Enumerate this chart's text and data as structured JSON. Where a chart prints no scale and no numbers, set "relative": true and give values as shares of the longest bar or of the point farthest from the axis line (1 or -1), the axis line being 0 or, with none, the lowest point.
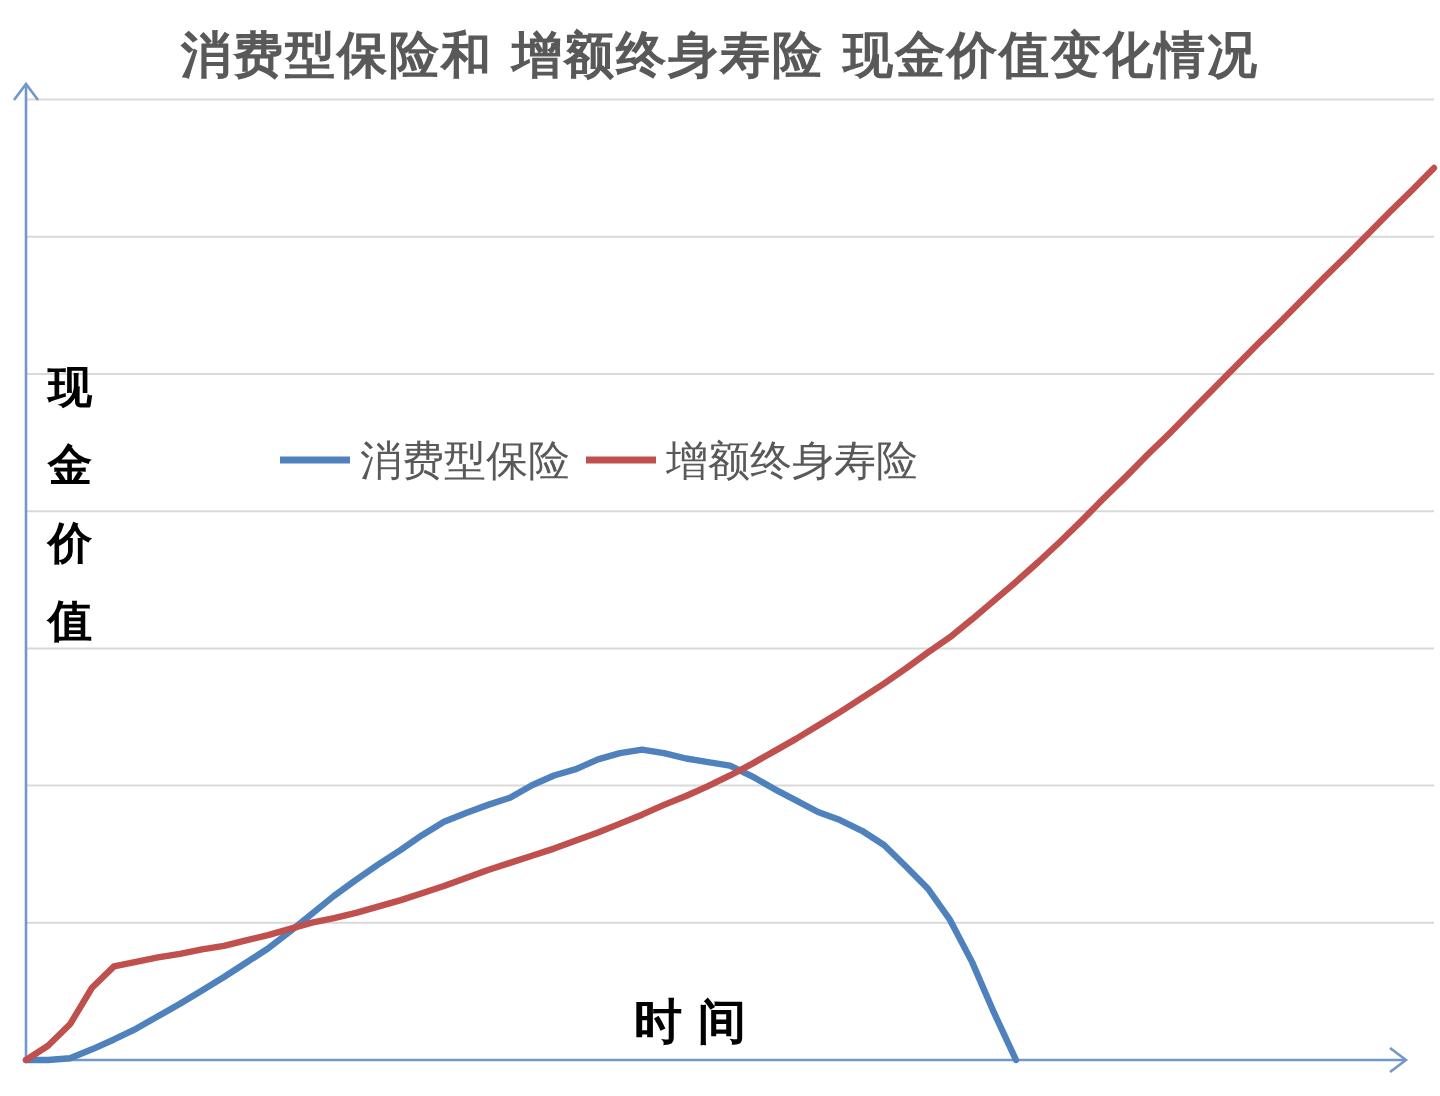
{
  "chart_data": {
    "type": "line",
    "title": "消费型保险和 增额终身寿险 现金价值变化情况",
    "xlabel": "时 间",
    "ylabel": "现金价值",
    "relative": true,
    "grid": "y",
    "legend": "top left",
    "categories": [
      null,
      null,
      null,
      null,
      null,
      null,
      null,
      null,
      null,
      null,
      null,
      null,
      null,
      null,
      null,
      null,
      null,
      null,
      null,
      null,
      null,
      null,
      null,
      null,
      null,
      null,
      null,
      null,
      null,
      null,
      null,
      null,
      null,
      null,
      null,
      null,
      null,
      null,
      null,
      null,
      null,
      null,
      null,
      null,
      null,
      null,
      null,
      null,
      null,
      null,
      null,
      null,
      null,
      null,
      null,
      null,
      null,
      null,
      null,
      null,
      null,
      null,
      null,
      null,
      null
    ],
    "series": [
      {
        "name": "消费型保险",
        "color": "#4f81bd",
        "values": [
          0,
          0,
          0.002,
          0.012,
          0.023,
          0.035,
          0.049,
          0.063,
          0.078,
          0.093,
          0.109,
          0.125,
          0.144,
          0.164,
          0.184,
          0.202,
          0.219,
          0.235,
          0.252,
          0.267,
          0.277,
          0.286,
          0.294,
          0.308,
          0.319,
          0.326,
          0.337,
          0.344,
          0.348,
          0.344,
          0.338,
          0.334,
          0.33,
          0.318,
          0.304,
          0.291,
          0.278,
          0.269,
          0.257,
          0.241,
          0.217,
          0.192,
          0.157,
          0.11,
          0.053,
          0,
          null,
          null,
          null,
          null,
          null,
          null,
          null,
          null,
          null,
          null,
          null,
          null,
          null,
          null,
          null,
          null,
          null,
          null,
          null
        ]
      },
      {
        "name": "增额终身寿险",
        "color": "#c0504d",
        "values": [
          0,
          0.016,
          0.04,
          0.081,
          0.105,
          0.11,
          0.115,
          0.119,
          0.124,
          0.128,
          0.134,
          0.14,
          0.147,
          0.154,
          0.159,
          0.165,
          0.172,
          0.179,
          0.187,
          0.195,
          0.204,
          0.213,
          0.221,
          0.229,
          0.237,
          0.246,
          0.255,
          0.265,
          0.275,
          0.286,
          0.296,
          0.307,
          0.319,
          0.332,
          0.346,
          0.36,
          0.375,
          0.39,
          0.406,
          0.422,
          0.439,
          0.457,
          0.474,
          0.494,
          0.515,
          0.536,
          0.558,
          0.581,
          0.605,
          0.63,
          0.654,
          0.679,
          0.703,
          0.728,
          0.753,
          0.778,
          0.803,
          0.827,
          0.852,
          0.877,
          0.901,
          0.926,
          0.951,
          0.975,
          1
        ]
      }
    ]
  }
}
